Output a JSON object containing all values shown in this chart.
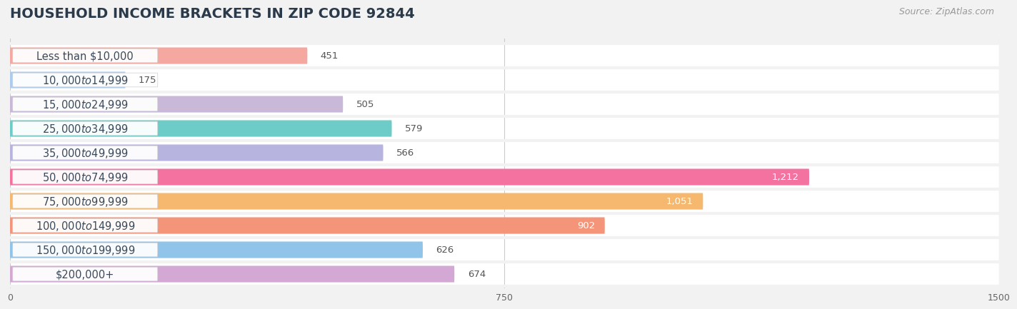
{
  "title": "HOUSEHOLD INCOME BRACKETS IN ZIP CODE 92844",
  "source": "Source: ZipAtlas.com",
  "categories": [
    "Less than $10,000",
    "$10,000 to $14,999",
    "$15,000 to $24,999",
    "$25,000 to $34,999",
    "$35,000 to $49,999",
    "$50,000 to $74,999",
    "$75,000 to $99,999",
    "$100,000 to $149,999",
    "$150,000 to $199,999",
    "$200,000+"
  ],
  "values": [
    451,
    175,
    505,
    579,
    566,
    1212,
    1051,
    902,
    626,
    674
  ],
  "bar_colors": [
    "#f4a8a0",
    "#aecdee",
    "#c9b8d8",
    "#6dccc8",
    "#b8b4e0",
    "#f472a0",
    "#f5b86e",
    "#f4957a",
    "#90c4e8",
    "#d4a8d4"
  ],
  "xlim": [
    0,
    1500
  ],
  "xticks": [
    0,
    750,
    1500
  ],
  "label_inside_threshold": 900,
  "bg_color": "#f2f2f2",
  "row_bg_color": "#e8e8e8",
  "title_fontsize": 14,
  "source_fontsize": 9,
  "bar_label_fontsize": 9.5,
  "category_fontsize": 10.5,
  "bar_height": 0.68
}
